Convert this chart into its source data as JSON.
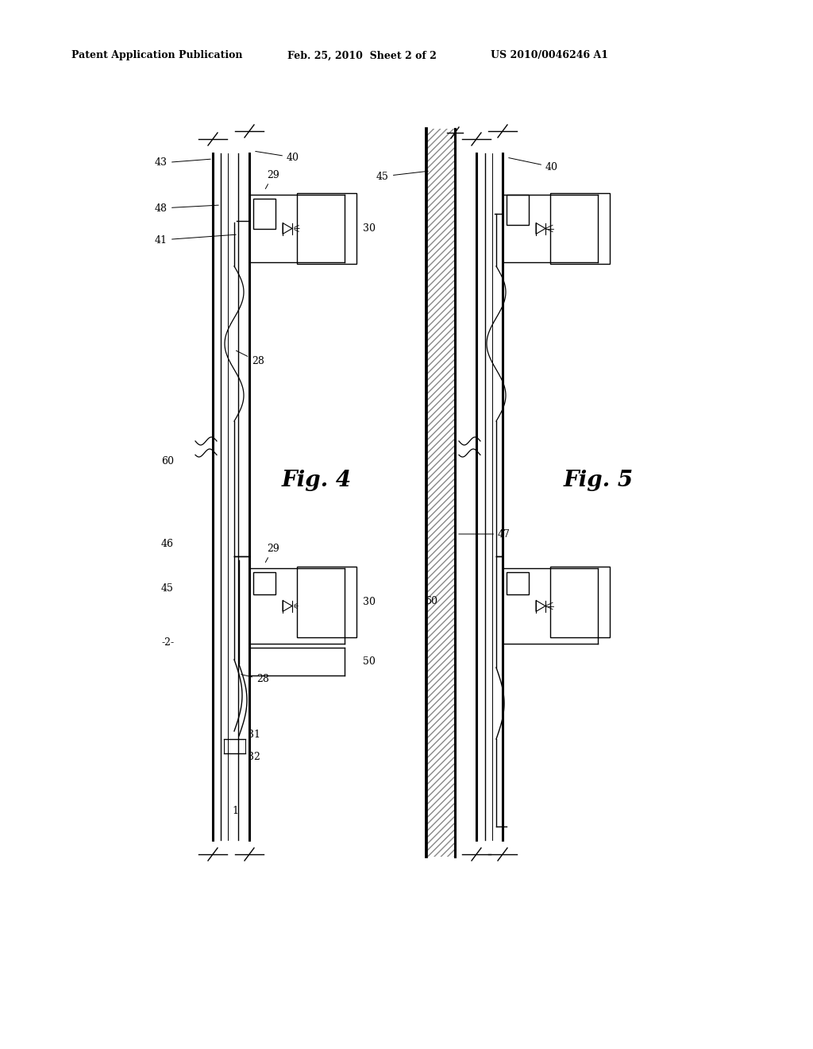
{
  "bg_color": "#ffffff",
  "header_text1": "Patent Application Publication",
  "header_text2": "Feb. 25, 2010  Sheet 2 of 2",
  "header_text3": "US 2010/0046246 A1",
  "fig4_label": "Fig. 4",
  "fig5_label": "Fig. 5"
}
